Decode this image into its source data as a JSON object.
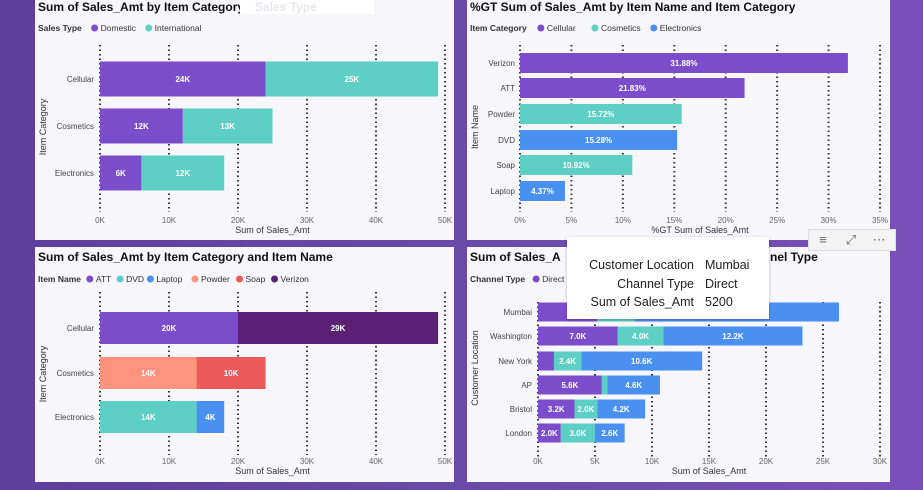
{
  "colors": {
    "domestic": "#7c4dcb",
    "international": "#5ecfc4",
    "cellular": "#7c4dcb",
    "cosmetics": "#5ecfc4",
    "electronics": "#4a90f0",
    "att": "#7c4dcb",
    "dvd": "#5ecfc4",
    "laptop": "#4a90f0",
    "powder": "#ff937d",
    "soap": "#ec5a5a",
    "verizon": "#5b2074"
  },
  "tooltip": {
    "rows": [
      {
        "key": "Customer Location",
        "value": "Mumbai"
      },
      {
        "key": "Channel Type",
        "value": "Direct"
      },
      {
        "key": "Sum of Sales_Amt",
        "value": "5200"
      }
    ]
  },
  "visual_header": {
    "icons": [
      "filter-icon",
      "focus-mode-icon",
      "more-options-icon"
    ],
    "more_label": "⋯"
  },
  "chart_data": [
    {
      "id": "c1",
      "type": "bar",
      "orientation": "horizontal",
      "stacked": true,
      "title": "Sum of Sales_Amt by Item Category",
      "title_overlay": "Sales Type",
      "legend_title": "Sales Type",
      "legend_position": "top-left",
      "xlabel": "Sum of Sales_Amt",
      "ylabel": "Item Category",
      "categories": [
        "Cellular",
        "Cosmetics",
        "Electronics"
      ],
      "series": [
        {
          "name": "Domestic",
          "color": "#7c4dcb",
          "values": [
            24000,
            12000,
            6000
          ],
          "labels": [
            "24K",
            "12K",
            "6K"
          ]
        },
        {
          "name": "International",
          "color": "#5ecfc4",
          "values": [
            25000,
            13000,
            12000
          ],
          "labels": [
            "25K",
            "13K",
            "12K"
          ]
        }
      ],
      "xlim": [
        0,
        50000
      ],
      "ticks": [
        0,
        10000,
        20000,
        30000,
        40000,
        50000
      ],
      "tick_labels": [
        "0K",
        "10K",
        "20K",
        "30K",
        "40K",
        "50K"
      ],
      "grid": true
    },
    {
      "id": "c2",
      "type": "bar",
      "orientation": "horizontal",
      "stacked": false,
      "title": "%GT Sum of Sales_Amt by Item Name and Item Category",
      "legend_title": "Item Category",
      "legend_position": "top-left",
      "xlabel": "%GT Sum of Sales_Amt",
      "ylabel": "Item Name",
      "legend": [
        {
          "name": "Cellular",
          "color": "#7c4dcb"
        },
        {
          "name": "Cosmetics",
          "color": "#5ecfc4"
        },
        {
          "name": "Electronics",
          "color": "#4a90f0"
        }
      ],
      "categories": [
        "Verizon",
        "ATT",
        "Powder",
        "DVD",
        "Soap",
        "Laptop"
      ],
      "values": [
        31.88,
        21.83,
        15.72,
        15.28,
        10.92,
        4.37
      ],
      "labels": [
        "31.88%",
        "21.83%",
        "15.72%",
        "15.28%",
        "10.92%",
        "4.37%"
      ],
      "bar_colors": [
        "#7c4dcb",
        "#7c4dcb",
        "#5ecfc4",
        "#4a90f0",
        "#5ecfc4",
        "#4a90f0"
      ],
      "xlim": [
        0,
        35
      ],
      "ticks": [
        0,
        5,
        10,
        15,
        20,
        25,
        30,
        35
      ],
      "tick_labels": [
        "0%",
        "5%",
        "10%",
        "15%",
        "20%",
        "25%",
        "30%",
        "35%"
      ],
      "grid": true
    },
    {
      "id": "c3",
      "type": "bar",
      "orientation": "horizontal",
      "stacked": true,
      "title": "Sum of Sales_Amt by Item Category and Item Name",
      "legend_title": "Item Name",
      "legend_position": "top-left",
      "xlabel": "Sum of Sales_Amt",
      "ylabel": "Item Category",
      "legend": [
        {
          "name": "ATT",
          "color": "#7c4dcb"
        },
        {
          "name": "DVD",
          "color": "#5ecfc4"
        },
        {
          "name": "Laptop",
          "color": "#4a90f0"
        },
        {
          "name": "Powder",
          "color": "#ff937d"
        },
        {
          "name": "Soap",
          "color": "#ec5a5a"
        },
        {
          "name": "Verizon",
          "color": "#5b2074"
        }
      ],
      "categories": [
        "Cellular",
        "Cosmetics",
        "Electronics"
      ],
      "segments": [
        [
          {
            "name": "ATT",
            "value": 20000,
            "label": "20K",
            "color": "#7c4dcb"
          },
          {
            "name": "Verizon",
            "value": 29000,
            "label": "29K",
            "color": "#5b2074"
          }
        ],
        [
          {
            "name": "Powder",
            "value": 14000,
            "label": "14K",
            "color": "#ff937d"
          },
          {
            "name": "Soap",
            "value": 10000,
            "label": "10K",
            "color": "#ec5a5a"
          }
        ],
        [
          {
            "name": "DVD",
            "value": 14000,
            "label": "14K",
            "color": "#5ecfc4"
          },
          {
            "name": "Laptop",
            "value": 4000,
            "label": "4K",
            "color": "#4a90f0"
          }
        ]
      ],
      "xlim": [
        0,
        50000
      ],
      "ticks": [
        0,
        10000,
        20000,
        30000,
        40000,
        50000
      ],
      "tick_labels": [
        "0K",
        "10K",
        "20K",
        "30K",
        "40K",
        "50K"
      ],
      "grid": true
    },
    {
      "id": "c4",
      "type": "bar",
      "orientation": "horizontal",
      "stacked": true,
      "title_left": "Sum of Sales_A",
      "title_right": "nel Type",
      "legend_title": "Channel Type",
      "legend_position": "top-left",
      "xlabel": "Sum of Sales_Amt",
      "ylabel": "Customer Location",
      "legend": [
        {
          "name": "Direct",
          "color": "#7c4dcb"
        }
      ],
      "categories": [
        "Mumbai",
        "Washington",
        "New York",
        "AP",
        "Bristol",
        "London"
      ],
      "segments": [
        [
          {
            "value": 5200,
            "label": "",
            "color": "#7c4dcb"
          },
          {
            "value": 3300,
            "label": "",
            "color": "#5ecfc4"
          },
          {
            "value": 17900,
            "label": "",
            "color": "#4a90f0"
          }
        ],
        [
          {
            "value": 7000,
            "label": "7.0K",
            "color": "#7c4dcb"
          },
          {
            "value": 4000,
            "label": "4.0K",
            "color": "#5ecfc4"
          },
          {
            "value": 12200,
            "label": "12.2K",
            "color": "#4a90f0"
          }
        ],
        [
          {
            "value": 1400,
            "label": "",
            "color": "#7c4dcb"
          },
          {
            "value": 2400,
            "label": "2.4K",
            "color": "#5ecfc4"
          },
          {
            "value": 10600,
            "label": "10.6K",
            "color": "#4a90f0"
          }
        ],
        [
          {
            "value": 5600,
            "label": "5.6K",
            "color": "#7c4dcb"
          },
          {
            "value": 500,
            "label": "",
            "color": "#5ecfc4"
          },
          {
            "value": 4600,
            "label": "4.6K",
            "color": "#4a90f0"
          }
        ],
        [
          {
            "value": 3200,
            "label": "3.2K",
            "color": "#7c4dcb"
          },
          {
            "value": 2000,
            "label": "2.0K",
            "color": "#5ecfc4"
          },
          {
            "value": 4200,
            "label": "4.2K",
            "color": "#4a90f0"
          }
        ],
        [
          {
            "value": 2000,
            "label": "2.0K",
            "color": "#7c4dcb"
          },
          {
            "value": 3000,
            "label": "3.0K",
            "color": "#5ecfc4"
          },
          {
            "value": 2600,
            "label": "2.6K",
            "color": "#4a90f0"
          }
        ]
      ],
      "xlim": [
        0,
        30000
      ],
      "ticks": [
        0,
        5000,
        10000,
        15000,
        20000,
        25000,
        30000
      ],
      "tick_labels": [
        "0K",
        "5K",
        "10K",
        "15K",
        "20K",
        "25K",
        "30K"
      ],
      "grid": true
    }
  ]
}
